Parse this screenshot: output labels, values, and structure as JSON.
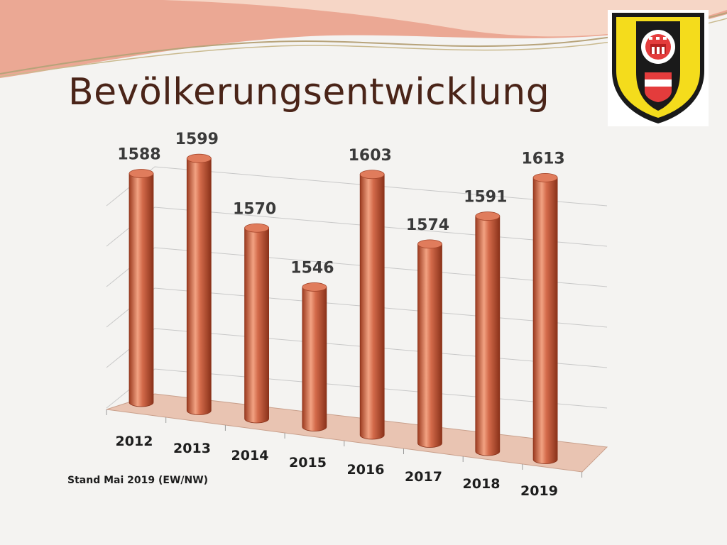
{
  "slide": {
    "title": "Bevölkerungsentwicklung",
    "footnote": "Stand Mai 2019 (EW/NW)"
  },
  "colors": {
    "bar": "#d36a4a",
    "bar_dark": "#9c3b20",
    "bar_light": "#f2a282",
    "floor": "#e9c4b2",
    "title": "#4a2418",
    "crest_yellow": "#f4dc1c",
    "crest_red": "#e43c3c"
  },
  "chart_data": {
    "type": "bar",
    "categories": [
      "2012",
      "2013",
      "2014",
      "2015",
      "2016",
      "2017",
      "2018",
      "2019"
    ],
    "values": [
      1588,
      1599,
      1570,
      1546,
      1603,
      1574,
      1591,
      1613
    ],
    "title": "",
    "xlabel": "",
    "ylabel": "",
    "ylim": [
      1480,
      1620
    ],
    "grid": true,
    "legend": "none"
  }
}
